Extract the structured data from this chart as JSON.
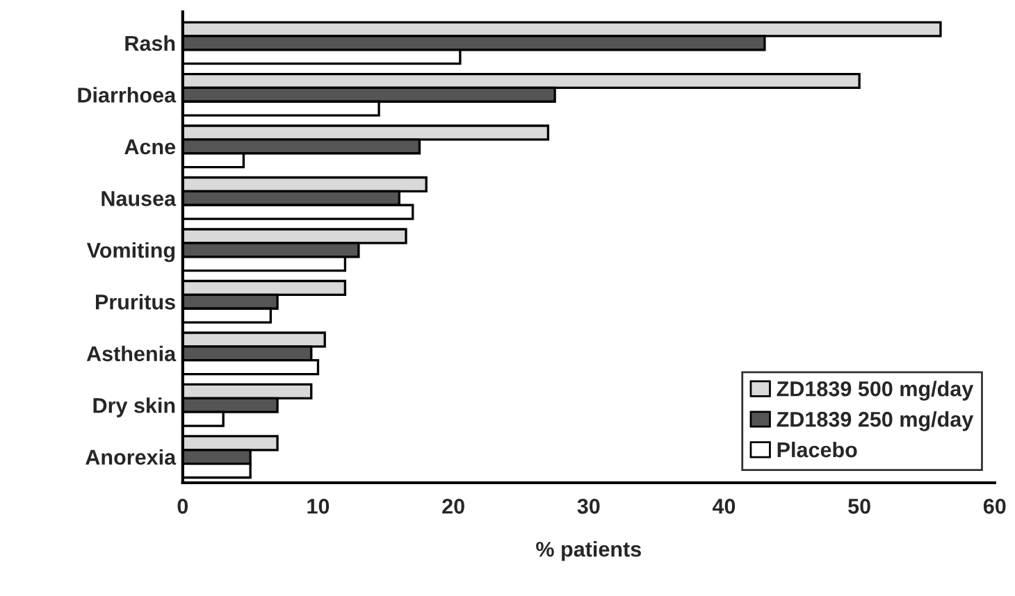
{
  "chart_data": {
    "type": "bar",
    "orientation": "horizontal",
    "xlabel": "% patients",
    "categories": [
      "Rash",
      "Diarrhoea",
      "Acne",
      "Nausea",
      "Vomiting",
      "Pruritus",
      "Asthenia",
      "Dry skin",
      "Anorexia"
    ],
    "series": [
      {
        "name": "ZD1839 500 mg/day",
        "color": "#d9d9d9",
        "values": [
          56,
          50,
          27,
          18,
          16.5,
          12,
          10.5,
          9.5,
          7
        ]
      },
      {
        "name": "ZD1839 250 mg/day",
        "color": "#555555",
        "values": [
          43,
          27.5,
          17.5,
          16,
          13,
          7,
          9.5,
          7,
          5
        ]
      },
      {
        "name": "Placebo",
        "color": "#ffffff",
        "values": [
          20.5,
          14.5,
          4.5,
          17,
          12,
          6.5,
          10,
          3,
          5
        ]
      }
    ],
    "xlim": [
      0,
      60
    ],
    "xticks": [
      0,
      10,
      20,
      30,
      40,
      50,
      60
    ],
    "grid": false,
    "legend": "bottom right"
  }
}
